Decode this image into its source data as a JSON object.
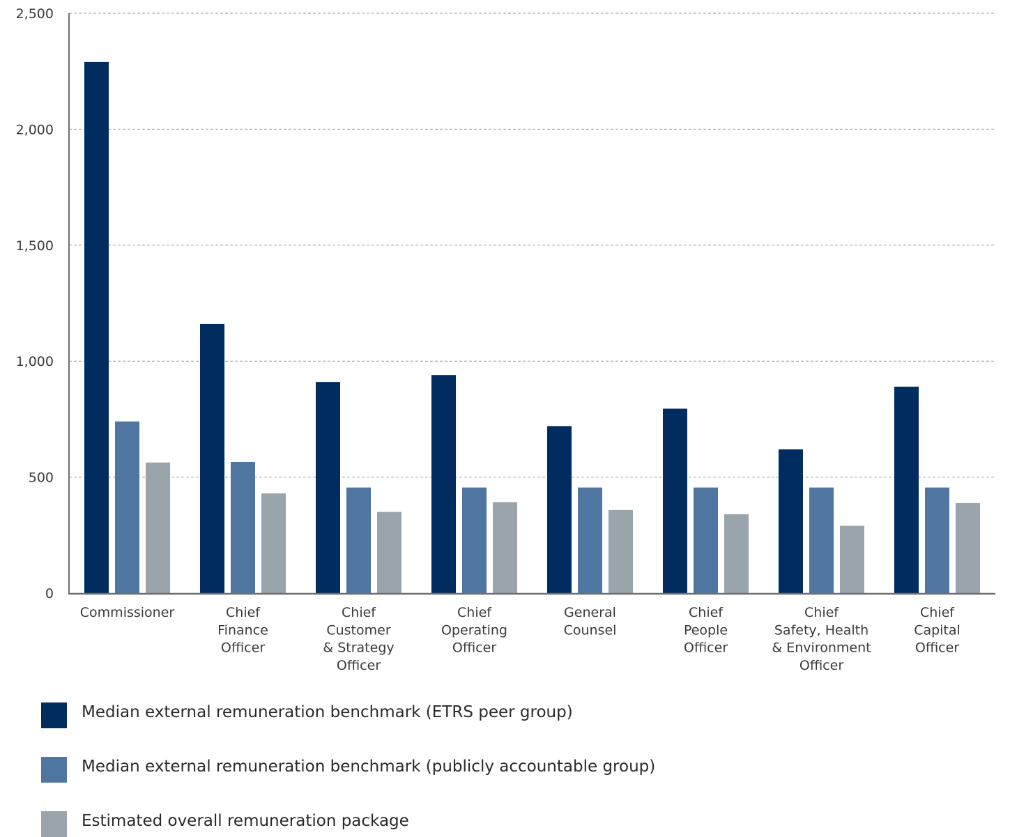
{
  "chart_data": {
    "type": "bar",
    "categories": [
      [
        "Commissioner"
      ],
      [
        "Chief",
        "Finance",
        "Officer"
      ],
      [
        "Chief",
        "Customer",
        "& Strategy",
        "Officer"
      ],
      [
        "Chief",
        "Operating",
        "Officer"
      ],
      [
        "General",
        "Counsel"
      ],
      [
        "Chief",
        "People",
        "Officer"
      ],
      [
        "Chief",
        "Safety, Health",
        "& Environment",
        "Officer"
      ],
      [
        "Chief",
        "Capital",
        "Officer"
      ]
    ],
    "series": [
      {
        "name": "Median external remuneration benchmark (ETRS peer group)",
        "color": "#002c5f",
        "values": [
          2290,
          1160,
          910,
          940,
          720,
          795,
          620,
          890
        ]
      },
      {
        "name": "Median external remuneration benchmark (publicly accountable group)",
        "color": "#4e76a0",
        "values": [
          740,
          565,
          455,
          455,
          455,
          455,
          455,
          455
        ]
      },
      {
        "name": "Estimated overall remuneration package",
        "color": "#99a4ab",
        "values": [
          563,
          430,
          350,
          392,
          358,
          340,
          290,
          388
        ]
      }
    ],
    "yticks": [
      "0",
      "500",
      "1,000",
      "1,500",
      "2,000",
      "2,500"
    ],
    "ytick_values": [
      0,
      500,
      1000,
      1500,
      2000,
      2500
    ],
    "ylim": [
      0,
      2500
    ],
    "grid": true,
    "gridline_style": "dashed",
    "legend_position": "bottom",
    "title": "",
    "xlabel": "",
    "ylabel": ""
  }
}
